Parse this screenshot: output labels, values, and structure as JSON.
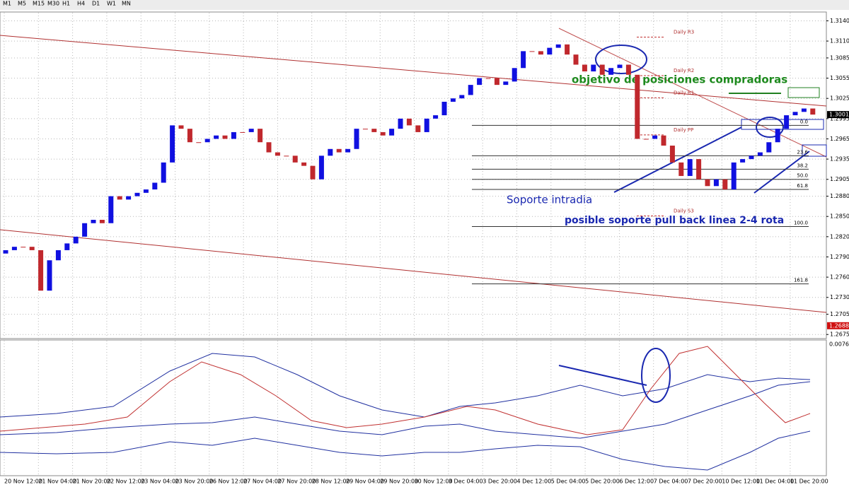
{
  "toolbar": {
    "timeframes": [
      "M1",
      "M5",
      "M15",
      "M30",
      "H1",
      "H4",
      "D1",
      "W1",
      "MN"
    ]
  },
  "chart_data": {
    "type": "candlestick",
    "up_color": "#1010e0",
    "down_color": "#c0282d",
    "ylim": [
      1.267,
      1.3152
    ],
    "yticks": [
      {
        "value": 1.314,
        "label": "1.3140"
      },
      {
        "value": 1.311,
        "label": "1.3110"
      },
      1.3085,
      1.3055,
      1.3025,
      1.2995,
      1.2965,
      1.2935,
      1.2905,
      {
        "value": 1.288,
        "label": "1.2880"
      },
      {
        "value": 1.285,
        "label": "1.2850"
      },
      {
        "value": 1.282,
        "label": "1.2820"
      },
      {
        "value": 1.279,
        "label": "1.2790"
      },
      {
        "value": 1.276,
        "label": "1.2760"
      },
      {
        "value": 1.273,
        "label": "1.2730"
      },
      1.2705,
      1.2675
    ],
    "grid": true,
    "time_labels": [
      "20 Nov 12:00",
      "21 Nov 04:00",
      "21 Nov 20:00",
      "22 Nov 12:00",
      "23 Nov 04:00",
      "23 Nov 20:00",
      "26 Nov 12:00",
      "27 Nov 04:00",
      "27 Nov 20:00",
      "28 Nov 12:00",
      "29 Nov 04:00",
      "29 Nov 20:00",
      "30 Nov 12:00",
      "3 Dec 04:00",
      "3 Dec 20:00",
      "4 Dec 12:00",
      "5 Dec 04:00",
      "5 Dec 20:00",
      "6 Dec 12:00",
      "7 Dec 04:00",
      "7 Dec 20:00",
      "10 Dec 12:00",
      "11 Dec 04:00",
      "11 Dec 20:00"
    ],
    "open": [
      1.2795,
      1.28,
      1.2805,
      1.2805,
      1.28,
      1.274,
      1.2785,
      1.28,
      1.281,
      1.282,
      1.284,
      1.2845,
      1.284,
      1.288,
      1.2875,
      1.288,
      1.2885,
      1.289,
      1.29,
      1.293,
      1.2985,
      1.298,
      1.296,
      1.296,
      1.2965,
      1.297,
      1.2965,
      1.2975,
      1.2975,
      1.298,
      1.296,
      1.2945,
      1.294,
      1.294,
      1.293,
      1.2925,
      1.2905,
      1.294,
      1.295,
      1.2945,
      1.295,
      1.298,
      1.298,
      1.2975,
      1.297,
      1.298,
      1.2995,
      1.2985,
      1.2975,
      1.2995,
      1.3,
      1.302,
      1.3025,
      1.303,
      1.3045,
      1.3055,
      1.3055,
      1.3045,
      1.305,
      1.307,
      1.3095,
      1.3095,
      1.309,
      1.31,
      1.3105,
      1.309,
      1.3075,
      1.3065,
      1.3075,
      1.306,
      1.307,
      1.3075,
      1.306,
      1.2965,
      1.2965,
      1.297,
      1.2955,
      1.293,
      1.291,
      1.2935,
      1.2905,
      1.2895,
      1.2905,
      1.289,
      1.293,
      1.2935,
      1.294,
      1.2945,
      1.296,
      1.298,
      1.3,
      1.3005,
      1.301
    ],
    "close": [
      1.28,
      1.2805,
      1.2805,
      1.28,
      1.274,
      1.2785,
      1.28,
      1.281,
      1.282,
      1.284,
      1.2845,
      1.284,
      1.288,
      1.2875,
      1.288,
      1.2885,
      1.289,
      1.29,
      1.293,
      1.2985,
      1.298,
      1.296,
      1.296,
      1.2965,
      1.297,
      1.2965,
      1.2975,
      1.2975,
      1.298,
      1.296,
      1.2945,
      1.294,
      1.294,
      1.293,
      1.2925,
      1.2905,
      1.294,
      1.295,
      1.2945,
      1.295,
      1.298,
      1.298,
      1.2975,
      1.297,
      1.298,
      1.2995,
      1.2985,
      1.2975,
      1.2995,
      1.3,
      1.302,
      1.3025,
      1.303,
      1.3045,
      1.3055,
      1.3055,
      1.3045,
      1.305,
      1.307,
      1.3095,
      1.3095,
      1.309,
      1.31,
      1.3105,
      1.309,
      1.3075,
      1.3065,
      1.3075,
      1.306,
      1.307,
      1.3075,
      1.306,
      1.2965,
      1.2965,
      1.297,
      1.2955,
      1.293,
      1.291,
      1.2935,
      1.2905,
      1.2895,
      1.2905,
      1.289,
      1.293,
      1.2935,
      1.294,
      1.2945,
      1.296,
      1.298,
      1.3,
      1.3005,
      1.301,
      1.3001
    ],
    "fib_levels": [
      {
        "value": 1.2985,
        "label": "0.0"
      },
      {
        "value": 1.294,
        "label": "23.6"
      },
      {
        "value": 1.292,
        "label": "38.2"
      },
      {
        "value": 1.2905,
        "label": "50.0"
      },
      {
        "value": 1.289,
        "label": "61.8"
      },
      {
        "value": 1.2835,
        "label": "100.0"
      },
      {
        "value": 1.275,
        "label": "161.8"
      }
    ],
    "pivots": [
      {
        "value": 1.312,
        "label": "Daily R3"
      },
      {
        "value": 1.3063,
        "label": "Daily R2"
      },
      {
        "value": 1.303,
        "label": "Daily R1"
      },
      {
        "value": 1.2975,
        "label": "Daily PP"
      },
      {
        "value": 1.2855,
        "label": "Daily S3"
      }
    ],
    "price_markers": [
      {
        "value": 1.3001,
        "color": "#000000"
      },
      {
        "value": 1.2688,
        "color": "#d01010"
      }
    ],
    "annotations": [
      "objetivo de posiciones compradoras",
      "Soporte intradia",
      "posible soporte pull back linea 2-4 rota"
    ],
    "indicator_tick": "0.0076"
  }
}
